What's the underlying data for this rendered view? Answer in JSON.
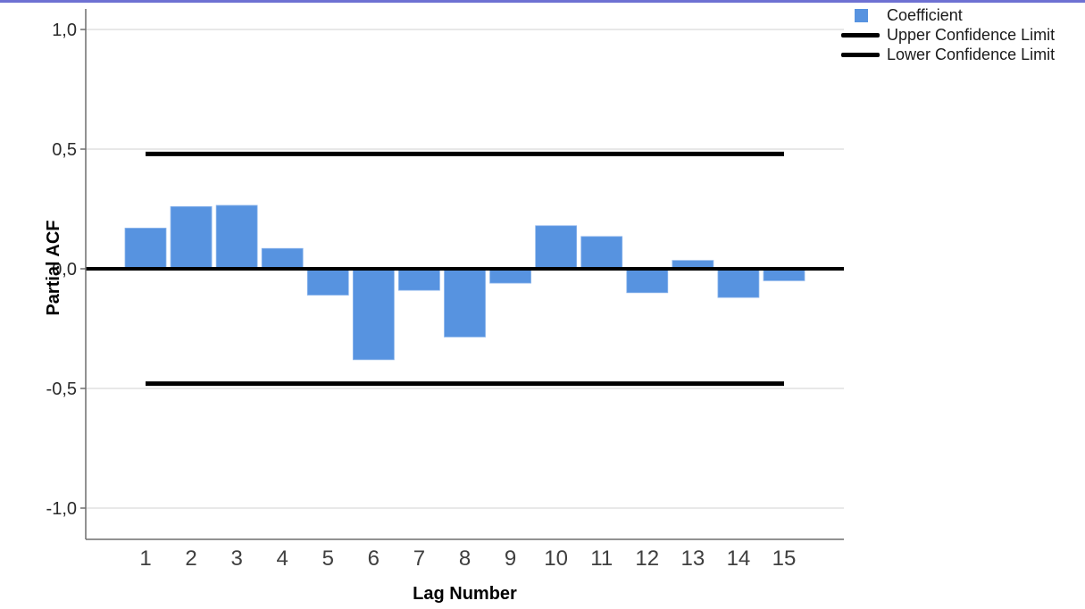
{
  "page": {
    "background": "#FFFFFF",
    "top_border_color": "#6E71D3"
  },
  "chart_data": {
    "type": "bar",
    "title": "",
    "xlabel": "Lag Number",
    "ylabel": "Partial ACF",
    "categories": [
      "1",
      "2",
      "3",
      "4",
      "5",
      "6",
      "7",
      "8",
      "9",
      "10",
      "11",
      "12",
      "13",
      "14",
      "15"
    ],
    "series": [
      {
        "name": "Coefficient",
        "kind": "bar",
        "color": "#5793E0",
        "values": [
          0.17,
          0.26,
          0.265,
          0.085,
          -0.11,
          -0.38,
          -0.09,
          -0.285,
          -0.06,
          0.18,
          0.135,
          -0.1,
          0.035,
          -0.12,
          -0.05
        ]
      },
      {
        "name": "Upper Confidence Limit",
        "kind": "hline",
        "color": "#000000",
        "value": 0.48,
        "span_categories": [
          "1",
          "15"
        ]
      },
      {
        "name": "Lower Confidence Limit",
        "kind": "hline",
        "color": "#000000",
        "value": -0.48,
        "span_categories": [
          "1",
          "15"
        ]
      }
    ],
    "y_ticks": [
      {
        "value": 1.0,
        "label": "1,0"
      },
      {
        "value": 0.5,
        "label": "0,5"
      },
      {
        "value": 0.0,
        "label": "0,0"
      },
      {
        "value": -0.5,
        "label": "-0,5"
      },
      {
        "value": -1.0,
        "label": "-1,0"
      }
    ],
    "ylim": [
      -1.14,
      1.09
    ],
    "zero_line": {
      "show": true,
      "color": "#000000"
    },
    "grid": {
      "show": true,
      "color": "#DADADA"
    },
    "axis_color": "#6E6E6E",
    "legend_position": "top-right"
  }
}
